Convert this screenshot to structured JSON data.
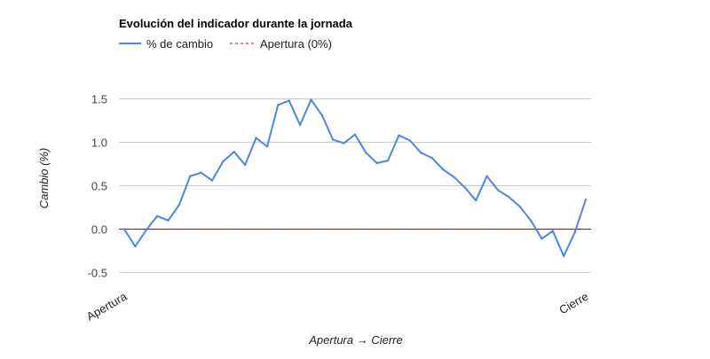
{
  "chart_data": {
    "type": "line",
    "title": "Evolución del indicador durante la jornada",
    "xlabel": "Apertura → Cierre",
    "ylabel": "Cambio (%)",
    "ylim": [
      -0.6,
      1.75
    ],
    "yticks": [
      "1.5",
      "1.0",
      "0.5",
      "0.0",
      "-0.5"
    ],
    "ytick_values": [
      1.5,
      1.0,
      0.5,
      0.0,
      -0.5
    ],
    "x_tick_labels": [
      "Apertura",
      "Cierre"
    ],
    "grid": true,
    "legend_position": "top-left",
    "series": [
      {
        "name": "% de cambio",
        "color": "#4a86e8",
        "style": "solid",
        "values": [
          0.0,
          -0.2,
          -0.01,
          0.15,
          0.1,
          0.28,
          0.61,
          0.65,
          0.56,
          0.78,
          0.89,
          0.74,
          1.05,
          0.95,
          1.43,
          1.48,
          1.2,
          1.49,
          1.31,
          1.03,
          0.99,
          1.09,
          0.88,
          0.76,
          0.79,
          1.08,
          1.02,
          0.88,
          0.82,
          0.69,
          0.6,
          0.48,
          0.33,
          0.61,
          0.45,
          0.37,
          0.26,
          0.1,
          -0.11,
          -0.02,
          -0.31,
          -0.04,
          0.34
        ]
      },
      {
        "name": "Apertura (0%)",
        "color": "#cc0000",
        "style": "dashed",
        "values": [
          0,
          0
        ]
      }
    ]
  }
}
